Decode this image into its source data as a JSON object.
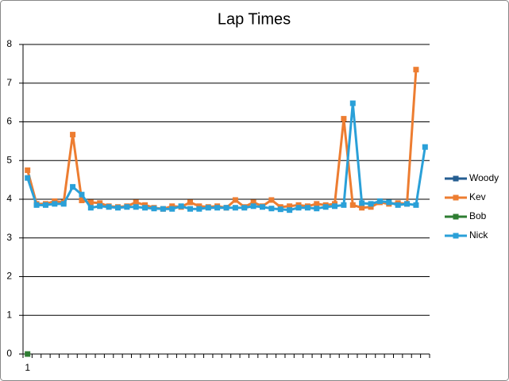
{
  "chart_data": {
    "type": "line",
    "title": "Lap Times",
    "categories": [
      "1",
      null,
      null,
      null,
      null,
      null,
      null,
      null,
      null,
      null,
      null,
      null,
      null,
      null,
      null,
      null,
      null,
      null,
      null,
      null,
      null,
      null,
      null,
      null,
      null,
      null,
      null,
      null,
      null,
      null,
      null,
      null,
      null,
      null,
      null,
      null,
      null,
      null,
      null,
      null,
      null,
      null,
      null,
      null,
      null
    ],
    "series": [
      {
        "name": "Woody",
        "color": "#255e91",
        "values": [
          null,
          null,
          null,
          null,
          null,
          null,
          null,
          null,
          null,
          null,
          null,
          null,
          null,
          null,
          null,
          null,
          null,
          null,
          null,
          null,
          null,
          null,
          null,
          null,
          null,
          null,
          null,
          null,
          null,
          null,
          null,
          null,
          null,
          null,
          null,
          null,
          null,
          null,
          null,
          null,
          null,
          null,
          null,
          null,
          null
        ]
      },
      {
        "name": "Kev",
        "color": "#ed7d31",
        "values": [
          4.75,
          3.88,
          3.88,
          3.95,
          3.92,
          5.67,
          3.97,
          3.92,
          3.9,
          3.82,
          3.8,
          3.82,
          3.92,
          3.85,
          3.78,
          3.75,
          3.82,
          3.8,
          3.92,
          3.82,
          3.8,
          3.82,
          3.78,
          3.98,
          3.8,
          3.92,
          3.82,
          3.98,
          3.8,
          3.82,
          3.85,
          3.82,
          3.88,
          3.85,
          3.88,
          6.08,
          3.85,
          3.78,
          3.8,
          3.92,
          3.88,
          3.9,
          3.88,
          7.35,
          null
        ]
      },
      {
        "name": "Bob",
        "color": "#2e7d32",
        "values": [
          0,
          null,
          null,
          null,
          null,
          null,
          null,
          null,
          null,
          null,
          null,
          null,
          null,
          null,
          null,
          null,
          null,
          null,
          null,
          null,
          null,
          null,
          null,
          null,
          null,
          null,
          null,
          null,
          null,
          null,
          null,
          null,
          null,
          null,
          null,
          null,
          null,
          null,
          null,
          null,
          null,
          null,
          null,
          null,
          null
        ]
      },
      {
        "name": "Nick",
        "color": "#2aa0d8",
        "values": [
          4.55,
          3.85,
          3.85,
          3.88,
          3.88,
          4.32,
          4.12,
          3.78,
          3.82,
          3.8,
          3.78,
          3.8,
          3.8,
          3.78,
          3.76,
          3.75,
          3.75,
          3.82,
          3.75,
          3.75,
          3.78,
          3.78,
          3.78,
          3.78,
          3.78,
          3.82,
          3.8,
          3.76,
          3.74,
          3.72,
          3.78,
          3.78,
          3.76,
          3.8,
          3.82,
          3.85,
          6.48,
          3.9,
          3.88,
          3.95,
          3.92,
          3.85,
          3.88,
          3.85,
          5.35
        ]
      }
    ],
    "ylim": [
      0,
      8
    ],
    "yticks": [
      0,
      1,
      2,
      3,
      4,
      5,
      6,
      7,
      8
    ],
    "grid": true,
    "legend": "right"
  }
}
